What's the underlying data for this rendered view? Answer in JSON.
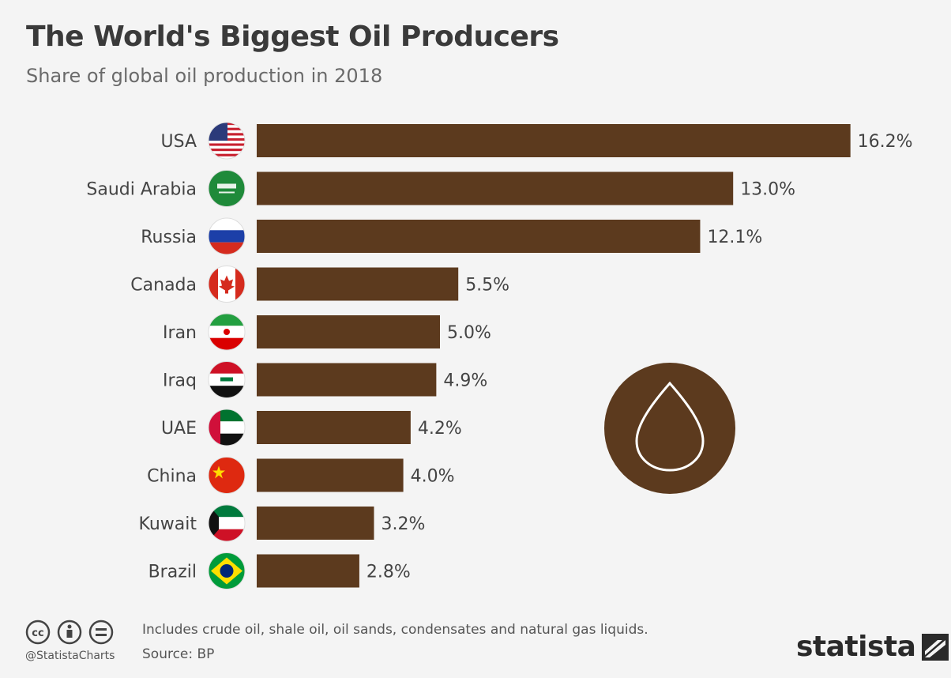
{
  "title": "The World's Biggest Oil Producers",
  "subtitle": "Share of global oil production in 2018",
  "chart_data": {
    "type": "bar",
    "orientation": "horizontal",
    "categories": [
      "USA",
      "Saudi Arabia",
      "Russia",
      "Canada",
      "Iran",
      "Iraq",
      "UAE",
      "China",
      "Kuwait",
      "Brazil"
    ],
    "values": [
      16.2,
      13.0,
      12.1,
      5.5,
      5.0,
      4.9,
      4.2,
      4.0,
      3.2,
      2.8
    ],
    "value_labels": [
      "16.2%",
      "13.0%",
      "12.1%",
      "5.5%",
      "5.0%",
      "4.9%",
      "4.2%",
      "4.0%",
      "3.2%",
      "2.8%"
    ],
    "unit": "%",
    "bar_color": "#5c3a1e",
    "grid": false,
    "legend": "none"
  },
  "flags": [
    "usa-flag-icon",
    "saudi-arabia-flag-icon",
    "russia-flag-icon",
    "canada-flag-icon",
    "iran-flag-icon",
    "iraq-flag-icon",
    "uae-flag-icon",
    "china-flag-icon",
    "kuwait-flag-icon",
    "brazil-flag-icon"
  ],
  "footer": {
    "note": "Includes crude oil, shale oil, oil sands, condensates and natural gas liquids.",
    "source": "Source: BP",
    "handle": "@StatistaCharts",
    "brand": "statista"
  },
  "icons": {
    "decoration": "oil-drop-icon",
    "license": [
      "cc-icon",
      "attribution-icon",
      "no-derivatives-icon"
    ]
  }
}
